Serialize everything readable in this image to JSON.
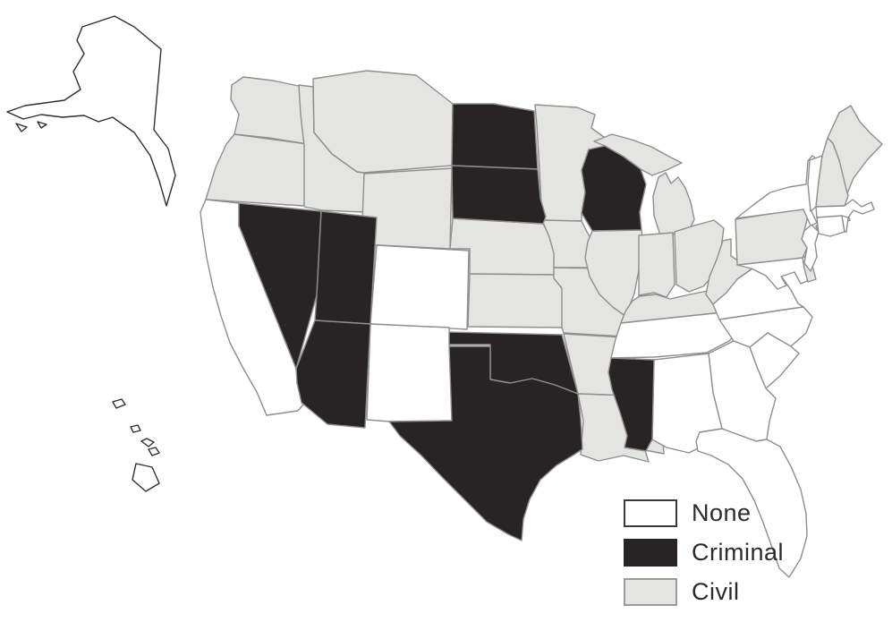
{
  "figure": {
    "background": "#ffffff",
    "description": "United States choropleth map"
  },
  "legend": {
    "items": [
      {
        "label": "None",
        "key": "none"
      },
      {
        "label": "Criminal",
        "key": "criminal"
      },
      {
        "label": "Civil",
        "key": "civil"
      }
    ]
  },
  "colors": {
    "none": "#ffffff",
    "criminal": "#282425",
    "civil": "#e4e4e3",
    "state_border": "#8e8e8e",
    "outline_dark": "#2f2f2f",
    "swatch_border_none": "#3a3a3a",
    "swatch_border_criminal": "#282425",
    "swatch_border_civil": "#9a9a9a",
    "label_text": "#2b2b2b"
  },
  "map": {
    "type": "choropleth",
    "region": "United States",
    "states": {
      "AK": "None",
      "HI": "None",
      "CA": "None",
      "CO": "None",
      "NM": "None",
      "TN": "None",
      "AL": "None",
      "GA": "None",
      "FL": "None",
      "SC": "None",
      "NC": "None",
      "VA": "None",
      "MD": "None",
      "NJ": "None",
      "NY": "None",
      "VT": "None",
      "MA": "None",
      "CT": "None",
      "RI": "None",
      "NV": "Criminal",
      "UT": "Criminal",
      "AZ": "Criminal",
      "ND": "Criminal",
      "SD": "Criminal",
      "WI": "Criminal",
      "OK": "Criminal",
      "TX": "Criminal",
      "MS": "Criminal",
      "WA": "Civil",
      "OR": "Civil",
      "ID": "Civil",
      "MT": "Civil",
      "WY": "Civil",
      "NE": "Civil",
      "KS": "Civil",
      "MN": "Civil",
      "IA": "Civil",
      "MO": "Civil",
      "AR": "Civil",
      "LA": "Civil",
      "IL": "Civil",
      "IN": "Civil",
      "OH": "Civil",
      "MI": "Civil",
      "KY": "Civil",
      "WV": "Civil",
      "PA": "Civil",
      "DE": "Civil",
      "NH": "Civil",
      "ME": "Civil"
    }
  }
}
